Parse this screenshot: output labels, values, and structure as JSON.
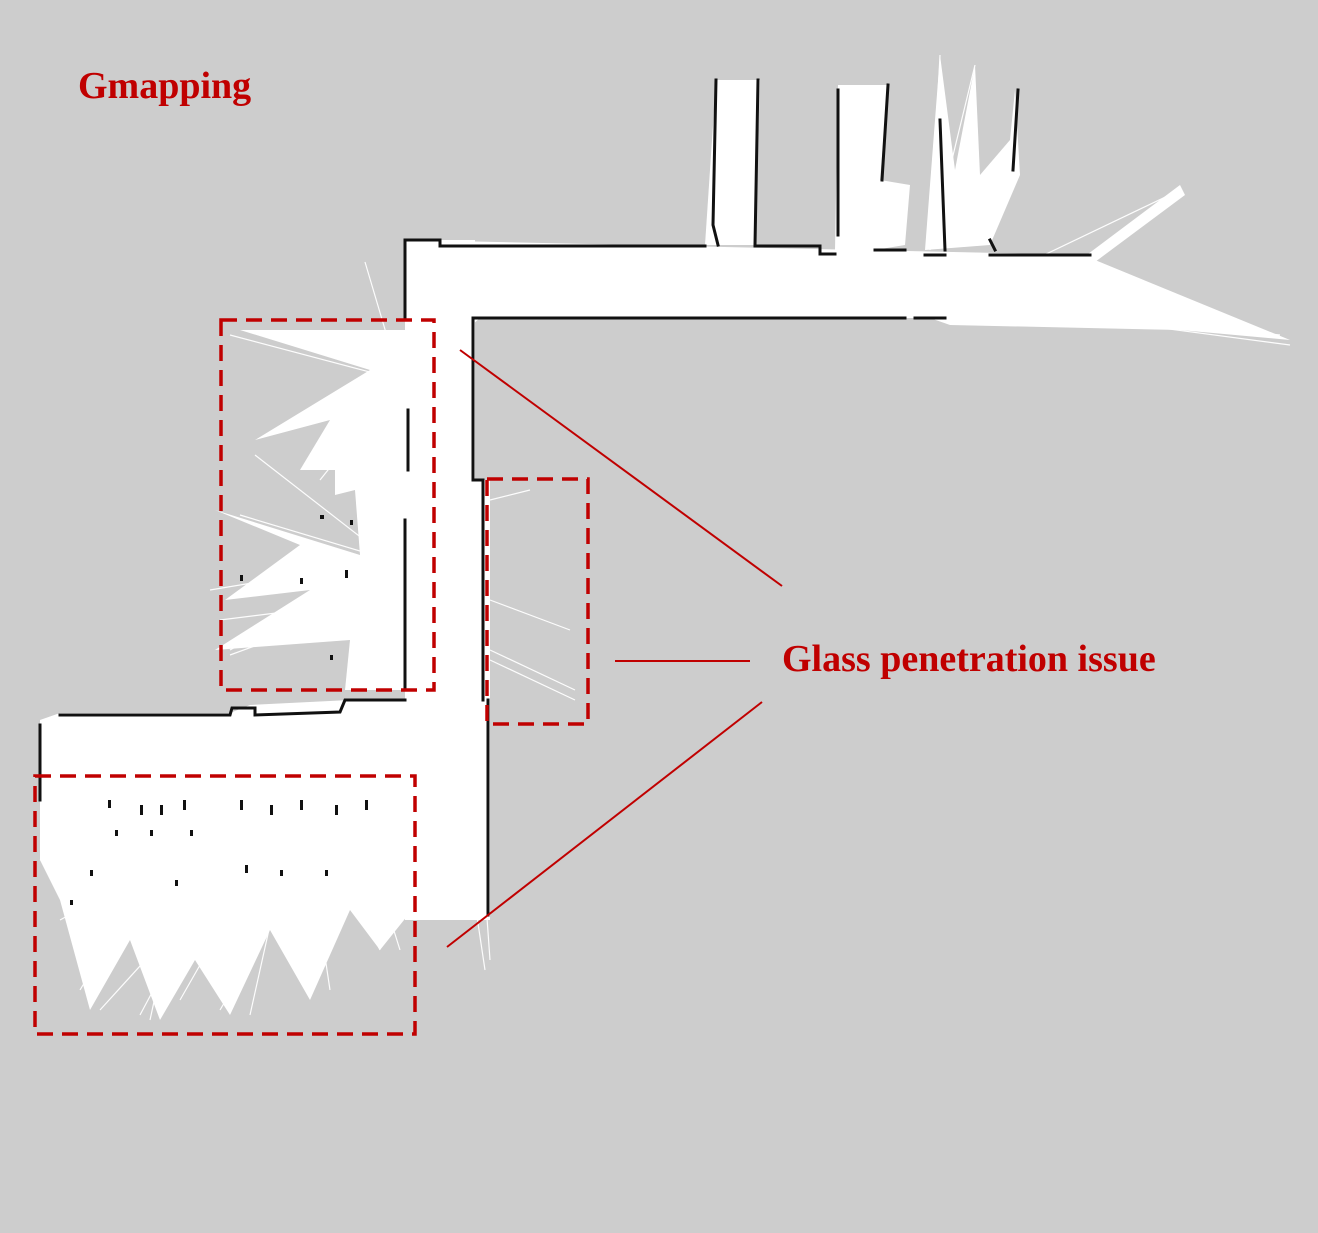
{
  "title": "Gmapping",
  "annotation": "Glass penetration issue",
  "colors": {
    "background": "#cdcdcd",
    "free_space": "#ffffff",
    "obstacle": "#111111",
    "annotation": "#c00000"
  }
}
